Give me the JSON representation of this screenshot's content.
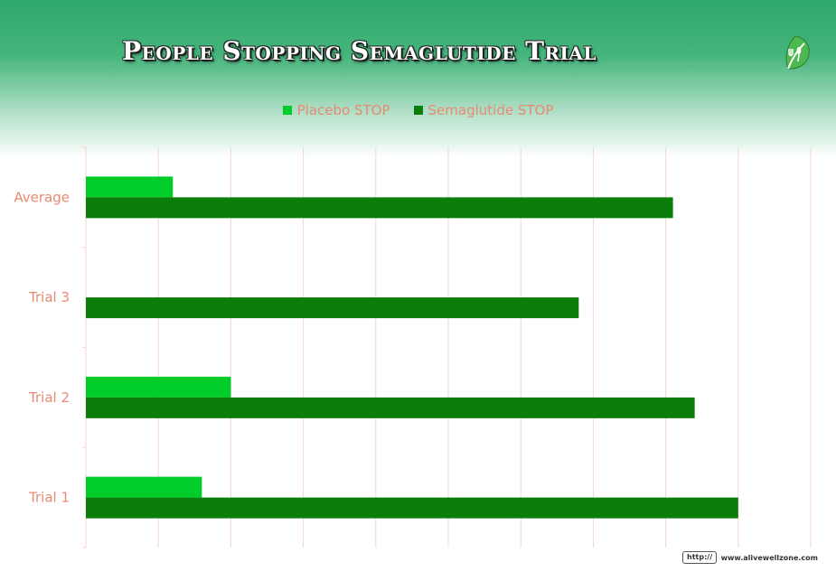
{
  "header": {
    "title": "People Stopping Semaglutide Trial"
  },
  "watermark": {
    "protocol": "http://",
    "url": "www.alivewellzone.com"
  },
  "icons": {
    "logo": "leaf-fork-spoon-logo-icon",
    "cursor": "pointer-cursor-icon"
  },
  "colors": {
    "placebo": "#00cc2a",
    "semaglutide": "#0a7d0a",
    "label": "#e88a72",
    "grid": "#f5d6d0",
    "header_green": "#2fa86b"
  },
  "chart_data": {
    "type": "bar",
    "orientation": "horizontal",
    "title": "People Stopping Semaglutide Trial",
    "categories": [
      "Trial 1",
      "Trial 2",
      "Trial 3",
      "Average"
    ],
    "series": [
      {
        "name": "Placebo STOP",
        "values": [
          1.6,
          2.0,
          0,
          1.2
        ]
      },
      {
        "name": "Semaglutide STOP",
        "values": [
          9.0,
          8.4,
          6.8,
          8.1
        ]
      }
    ],
    "xlim": [
      0,
      10
    ],
    "xlabel": "",
    "ylabel": "",
    "grid": true,
    "x_tick_labels_shown": false,
    "legend_position": "top-center"
  }
}
